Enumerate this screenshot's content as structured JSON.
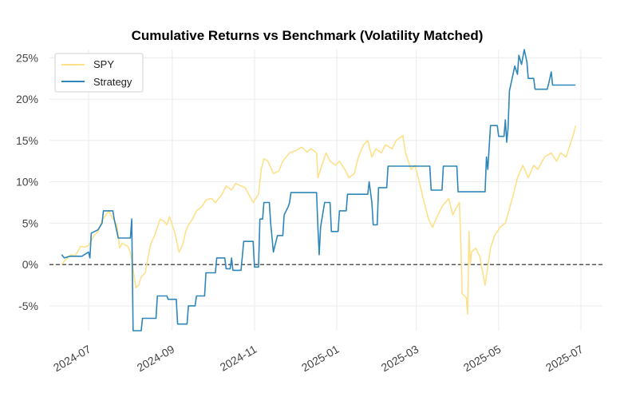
{
  "chart_data": {
    "type": "line",
    "title": "Cumulative Returns vs Benchmark (Volatility Matched)",
    "xlabel": "",
    "ylabel": "",
    "ylim": [
      -8,
      26
    ],
    "y_ticks": [
      -5,
      0,
      5,
      10,
      15,
      20,
      25
    ],
    "y_tick_labels": [
      "-5%",
      "0%",
      "5%",
      "10%",
      "15%",
      "20%",
      "25%"
    ],
    "x_ticks": [
      "2024-07-01",
      "2024-09-01",
      "2024-11-01",
      "2025-01-01",
      "2025-03-01",
      "2025-05-01",
      "2025-07-01"
    ],
    "x_tick_labels": [
      "2024-07",
      "2024-09",
      "2024-11",
      "2025-01",
      "2025-03",
      "2025-05",
      "2025-07"
    ],
    "xlim": [
      "2024-06-02",
      "2025-07-17"
    ],
    "grid": true,
    "zero_line": true,
    "legend_position": "top-left",
    "series": [
      {
        "name": "SPY",
        "color": "#fde08a",
        "points": [
          [
            "2024-06-11",
            0.0
          ],
          [
            "2024-06-14",
            0.6
          ],
          [
            "2024-06-18",
            1.2
          ],
          [
            "2024-06-21",
            1.0
          ],
          [
            "2024-06-25",
            2.2
          ],
          [
            "2024-06-28",
            2.1
          ],
          [
            "2024-07-01",
            2.3
          ],
          [
            "2024-07-05",
            3.5
          ],
          [
            "2024-07-08",
            4.0
          ],
          [
            "2024-07-11",
            5.3
          ],
          [
            "2024-07-16",
            6.5
          ],
          [
            "2024-07-18",
            5.8
          ],
          [
            "2024-07-22",
            4.8
          ],
          [
            "2024-07-24",
            2.0
          ],
          [
            "2024-07-26",
            2.6
          ],
          [
            "2024-07-30",
            2.2
          ],
          [
            "2024-08-01",
            1.5
          ],
          [
            "2024-08-02",
            0.5
          ],
          [
            "2024-08-05",
            -2.8
          ],
          [
            "2024-08-07",
            -2.5
          ],
          [
            "2024-08-09",
            -1.5
          ],
          [
            "2024-08-12",
            -1.0
          ],
          [
            "2024-08-14",
            0.8
          ],
          [
            "2024-08-16",
            2.5
          ],
          [
            "2024-08-19",
            3.5
          ],
          [
            "2024-08-21",
            4.5
          ],
          [
            "2024-08-23",
            5.5
          ],
          [
            "2024-08-26",
            5.2
          ],
          [
            "2024-08-28",
            4.8
          ],
          [
            "2024-08-30",
            5.8
          ],
          [
            "2024-09-03",
            3.8
          ],
          [
            "2024-09-06",
            1.5
          ],
          [
            "2024-09-09",
            2.5
          ],
          [
            "2024-09-11",
            4.0
          ],
          [
            "2024-09-13",
            4.8
          ],
          [
            "2024-09-16",
            5.5
          ],
          [
            "2024-09-19",
            6.5
          ],
          [
            "2024-09-23",
            7.0
          ],
          [
            "2024-09-26",
            7.8
          ],
          [
            "2024-09-30",
            8.0
          ],
          [
            "2024-10-03",
            7.5
          ],
          [
            "2024-10-08",
            8.5
          ],
          [
            "2024-10-11",
            9.5
          ],
          [
            "2024-10-15",
            9.0
          ],
          [
            "2024-10-18",
            9.8
          ],
          [
            "2024-10-22",
            9.5
          ],
          [
            "2024-10-25",
            9.3
          ],
          [
            "2024-10-31",
            7.5
          ],
          [
            "2024-11-04",
            8.5
          ],
          [
            "2024-11-06",
            11.5
          ],
          [
            "2024-11-08",
            12.8
          ],
          [
            "2024-11-11",
            12.5
          ],
          [
            "2024-11-15",
            11.0
          ],
          [
            "2024-11-19",
            11.3
          ],
          [
            "2024-11-22",
            12.5
          ],
          [
            "2024-11-27",
            13.5
          ],
          [
            "2024-12-02",
            13.8
          ],
          [
            "2024-12-06",
            14.2
          ],
          [
            "2024-12-10",
            13.6
          ],
          [
            "2024-12-13",
            14.0
          ],
          [
            "2024-12-17",
            13.5
          ],
          [
            "2024-12-18",
            10.5
          ],
          [
            "2024-12-20",
            11.5
          ],
          [
            "2024-12-24",
            13.5
          ],
          [
            "2024-12-27",
            12.5
          ],
          [
            "2024-12-31",
            12.0
          ],
          [
            "2025-01-03",
            12.5
          ],
          [
            "2025-01-07",
            11.5
          ],
          [
            "2025-01-10",
            10.5
          ],
          [
            "2025-01-14",
            11.0
          ],
          [
            "2025-01-17",
            13.0
          ],
          [
            "2025-01-21",
            14.5
          ],
          [
            "2025-01-24",
            15.0
          ],
          [
            "2025-01-27",
            13.0
          ],
          [
            "2025-01-30",
            14.0
          ],
          [
            "2025-02-03",
            13.5
          ],
          [
            "2025-02-06",
            14.5
          ],
          [
            "2025-02-11",
            14.0
          ],
          [
            "2025-02-14",
            15.0
          ],
          [
            "2025-02-19",
            15.6
          ],
          [
            "2025-02-21",
            13.5
          ],
          [
            "2025-02-25",
            11.5
          ],
          [
            "2025-02-28",
            12.0
          ],
          [
            "2025-03-04",
            9.5
          ],
          [
            "2025-03-06",
            8.0
          ],
          [
            "2025-03-10",
            5.5
          ],
          [
            "2025-03-13",
            4.5
          ],
          [
            "2025-03-17",
            6.0
          ],
          [
            "2025-03-20",
            7.0
          ],
          [
            "2025-03-25",
            8.0
          ],
          [
            "2025-03-28",
            6.0
          ],
          [
            "2025-03-31",
            7.0
          ],
          [
            "2025-04-02",
            7.5
          ],
          [
            "2025-04-03",
            2.5
          ],
          [
            "2025-04-04",
            -3.5
          ],
          [
            "2025-04-07",
            -4.0
          ],
          [
            "2025-04-08",
            -6.0
          ],
          [
            "2025-04-09",
            4.0
          ],
          [
            "2025-04-10",
            0.0
          ],
          [
            "2025-04-11",
            1.5
          ],
          [
            "2025-04-14",
            2.0
          ],
          [
            "2025-04-17",
            1.0
          ],
          [
            "2025-04-21",
            -2.5
          ],
          [
            "2025-04-25",
            2.0
          ],
          [
            "2025-04-28",
            3.5
          ],
          [
            "2025-05-02",
            4.5
          ],
          [
            "2025-05-06",
            5.0
          ],
          [
            "2025-05-12",
            8.5
          ],
          [
            "2025-05-15",
            10.5
          ],
          [
            "2025-05-19",
            12.0
          ],
          [
            "2025-05-23",
            10.5
          ],
          [
            "2025-05-27",
            12.0
          ],
          [
            "2025-05-30",
            11.5
          ],
          [
            "2025-06-04",
            13.0
          ],
          [
            "2025-06-09",
            13.5
          ],
          [
            "2025-06-13",
            12.5
          ],
          [
            "2025-06-16",
            13.5
          ],
          [
            "2025-06-20",
            13.0
          ],
          [
            "2025-06-23",
            14.5
          ],
          [
            "2025-06-26",
            16.0
          ],
          [
            "2025-06-27",
            16.8
          ]
        ]
      },
      {
        "name": "Strategy",
        "color": "#2e86b8",
        "points": [
          [
            "2024-06-11",
            1.2
          ],
          [
            "2024-06-13",
            0.8
          ],
          [
            "2024-06-17",
            1.0
          ],
          [
            "2024-06-26",
            1.0
          ],
          [
            "2024-07-01",
            1.5
          ],
          [
            "2024-07-02",
            0.8
          ],
          [
            "2024-07-03",
            3.8
          ],
          [
            "2024-07-08",
            4.2
          ],
          [
            "2024-07-11",
            5.0
          ],
          [
            "2024-07-12",
            6.5
          ],
          [
            "2024-07-19",
            6.5
          ],
          [
            "2024-07-20",
            5.5
          ],
          [
            "2024-07-23",
            3.2
          ],
          [
            "2024-08-01",
            3.2
          ],
          [
            "2024-08-02",
            5.5
          ],
          [
            "2024-08-03",
            -8.0
          ],
          [
            "2024-08-09",
            -8.0
          ],
          [
            "2024-08-10",
            -6.5
          ],
          [
            "2024-08-20",
            -6.5
          ],
          [
            "2024-08-21",
            -3.8
          ],
          [
            "2024-08-28",
            -3.8
          ],
          [
            "2024-08-29",
            -4.2
          ],
          [
            "2024-09-04",
            -4.2
          ],
          [
            "2024-09-05",
            -7.2
          ],
          [
            "2024-09-12",
            -7.2
          ],
          [
            "2024-09-13",
            -5.0
          ],
          [
            "2024-09-18",
            -5.0
          ],
          [
            "2024-09-19",
            -3.8
          ],
          [
            "2024-09-25",
            -3.8
          ],
          [
            "2024-09-26",
            -1.0
          ],
          [
            "2024-10-03",
            -1.0
          ],
          [
            "2024-10-04",
            0.8
          ],
          [
            "2024-10-10",
            0.8
          ],
          [
            "2024-10-11",
            -0.5
          ],
          [
            "2024-10-14",
            -0.5
          ],
          [
            "2024-10-15",
            0.8
          ],
          [
            "2024-10-16",
            -0.7
          ],
          [
            "2024-10-22",
            -0.7
          ],
          [
            "2024-10-23",
            1.0
          ],
          [
            "2024-10-24",
            2.8
          ],
          [
            "2024-10-31",
            2.8
          ],
          [
            "2024-11-01",
            -0.3
          ],
          [
            "2024-11-04",
            -0.3
          ],
          [
            "2024-11-05",
            5.5
          ],
          [
            "2024-11-07",
            5.5
          ],
          [
            "2024-11-08",
            7.5
          ],
          [
            "2024-11-12",
            7.5
          ],
          [
            "2024-11-13",
            5.0
          ],
          [
            "2024-11-15",
            1.5
          ],
          [
            "2024-11-18",
            3.5
          ],
          [
            "2024-11-22",
            3.5
          ],
          [
            "2024-11-23",
            6.0
          ],
          [
            "2024-11-26",
            7.0
          ],
          [
            "2024-11-27",
            7.5
          ],
          [
            "2024-11-28",
            8.7
          ],
          [
            "2024-12-17",
            8.7
          ],
          [
            "2024-12-18",
            4.5
          ],
          [
            "2024-12-19",
            1.2
          ],
          [
            "2024-12-20",
            4.5
          ],
          [
            "2024-12-23",
            7.5
          ],
          [
            "2024-12-27",
            7.5
          ],
          [
            "2024-12-28",
            4.0
          ],
          [
            "2025-01-02",
            4.0
          ],
          [
            "2025-01-03",
            6.5
          ],
          [
            "2025-01-08",
            6.5
          ],
          [
            "2025-01-09",
            8.5
          ],
          [
            "2025-01-24",
            8.5
          ],
          [
            "2025-01-25",
            10.0
          ],
          [
            "2025-01-27",
            7.5
          ],
          [
            "2025-01-28",
            4.8
          ],
          [
            "2025-01-31",
            4.8
          ],
          [
            "2025-02-01",
            9.3
          ],
          [
            "2025-02-07",
            9.3
          ],
          [
            "2025-02-08",
            11.9
          ],
          [
            "2025-03-11",
            11.9
          ],
          [
            "2025-03-12",
            9.0
          ],
          [
            "2025-03-20",
            9.0
          ],
          [
            "2025-03-21",
            11.9
          ],
          [
            "2025-03-31",
            11.9
          ],
          [
            "2025-04-01",
            8.8
          ],
          [
            "2025-04-21",
            8.8
          ],
          [
            "2025-04-22",
            13.0
          ],
          [
            "2025-04-23",
            11.5
          ],
          [
            "2025-04-25",
            16.8
          ],
          [
            "2025-04-30",
            16.8
          ],
          [
            "2025-05-01",
            15.5
          ],
          [
            "2025-05-05",
            15.5
          ],
          [
            "2025-05-06",
            17.5
          ],
          [
            "2025-05-07",
            14.8
          ],
          [
            "2025-05-08",
            16.5
          ],
          [
            "2025-05-09",
            21.0
          ],
          [
            "2025-05-11",
            22.5
          ],
          [
            "2025-05-13",
            24.0
          ],
          [
            "2025-05-15",
            23.0
          ],
          [
            "2025-05-16",
            25.3
          ],
          [
            "2025-05-18",
            24.2
          ],
          [
            "2025-05-20",
            26.0
          ],
          [
            "2025-05-22",
            24.5
          ],
          [
            "2025-05-23",
            22.5
          ],
          [
            "2025-05-27",
            22.5
          ],
          [
            "2025-05-28",
            21.2
          ],
          [
            "2025-06-06",
            21.2
          ],
          [
            "2025-06-07",
            21.8
          ],
          [
            "2025-06-09",
            23.3
          ],
          [
            "2025-06-10",
            21.7
          ],
          [
            "2025-06-27",
            21.7
          ]
        ]
      }
    ]
  }
}
